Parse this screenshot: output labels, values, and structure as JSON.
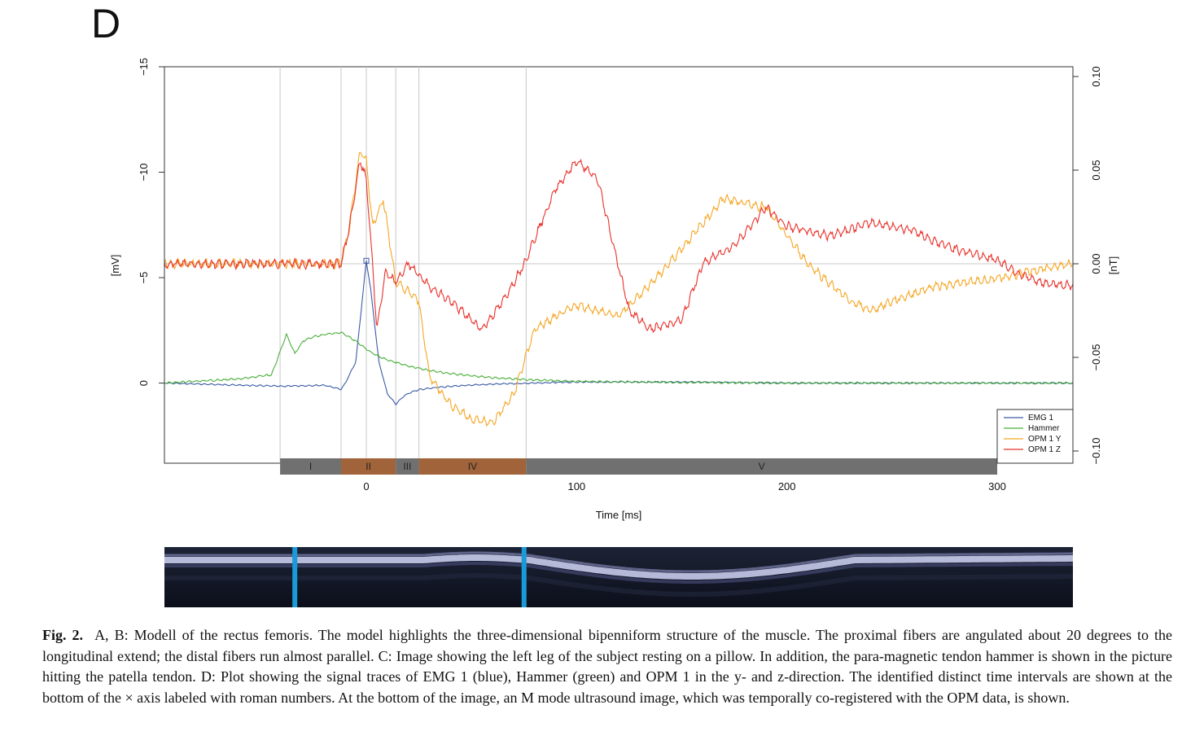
{
  "panel_label": "D",
  "caption": {
    "label": "Fig. 2.",
    "text": "A, B: Modell of the rectus femoris. The model highlights the three-dimensional bipenniform structure of the muscle. The proximal fibers are angulated about 20 degrees to the longitudinal extend; the distal fibers run almost parallel. C: Image showing the left leg of the subject resting on a pillow. In addition, the para-magnetic tendon hammer is shown in the picture hitting the patella tendon. D: Plot showing the signal traces of EMG 1 (blue), Hammer (green) and OPM 1 in the y- and z-direction. The identified distinct time intervals are shown at the bottom of the × axis labeled with roman numbers. At the bottom of the image, an M mode ultrasound image, which was temporally co-registered with the OPM data, is shown."
  },
  "chart_data": {
    "type": "line",
    "xlabel": "Time [ms]",
    "ylabel_left": "[mV]",
    "ylabel_right": "[nT]",
    "xlim": [
      -96,
      336
    ],
    "ylim_left": [
      -15,
      3.8
    ],
    "ylim_right": [
      -0.1,
      0.1
    ],
    "x_ticks": [
      0,
      100,
      200,
      300
    ],
    "y_ticks_left": [
      -15,
      -10,
      -5,
      0
    ],
    "y_ticks_right": [
      0.1,
      0.05,
      0.0,
      -0.05,
      -0.1
    ],
    "y_tick_labels_left": [
      "−15",
      "−10",
      "−5",
      "0"
    ],
    "y_tick_labels_right": [
      "0.10",
      "0.05",
      "0.00",
      "−0.05",
      "−0.10"
    ],
    "x_tick_labels": [
      "0",
      "100",
      "200",
      "300"
    ],
    "left_axis_inverted": true,
    "grid": "vertical lines at interval boundaries",
    "vlines": [
      -41,
      -12,
      0,
      14,
      25,
      76
    ],
    "hline_right": 0,
    "legend_position": "bottom-right",
    "legend": [
      "EMG 1",
      "Hammer",
      "OPM 1  Y",
      "OPM 1  Z"
    ],
    "intervals": [
      {
        "label": "I",
        "start": -41,
        "end": -12,
        "color": "#707070"
      },
      {
        "label": "II",
        "start": -12,
        "end": 14,
        "color": "#a0633a"
      },
      {
        "label": "III",
        "start": 14,
        "end": 25,
        "color": "#707070"
      },
      {
        "label": "IV",
        "start": 25,
        "end": 76,
        "color": "#a0633a"
      },
      {
        "label": "V",
        "start": 76,
        "end": 300,
        "color": "#707070"
      }
    ],
    "series": [
      {
        "name": "EMG 1",
        "axis": "left",
        "color": "#3b5ba5",
        "x": [
          -96,
          -60,
          -40,
          -20,
          -12,
          -10,
          -5,
          0,
          2,
          6,
          10,
          14,
          18,
          22,
          26,
          30,
          40,
          50,
          60,
          80,
          100,
          130,
          160,
          200,
          250,
          300,
          336
        ],
        "y": [
          0,
          0.1,
          0.15,
          0.1,
          0.3,
          0,
          -1.0,
          -5.8,
          -4.5,
          -1.0,
          0.5,
          1.0,
          0.6,
          0.4,
          0.3,
          0.25,
          0.15,
          0.1,
          0.05,
          0.0,
          -0.05,
          -0.05,
          -0.05,
          0,
          0,
          0,
          0
        ]
      },
      {
        "name": "Hammer",
        "axis": "left",
        "color": "#4caf3c",
        "x": [
          -96,
          -60,
          -45,
          -38,
          -34,
          -30,
          -25,
          -20,
          -12,
          -5,
          0,
          5,
          10,
          20,
          30,
          40,
          50,
          60,
          80,
          100,
          150,
          200,
          250,
          300,
          336
        ],
        "y": [
          0,
          -0.2,
          -0.4,
          -2.3,
          -1.4,
          -2.0,
          -2.2,
          -2.3,
          -2.4,
          -2.0,
          -1.6,
          -1.3,
          -1.1,
          -0.8,
          -0.6,
          -0.45,
          -0.35,
          -0.25,
          -0.15,
          -0.08,
          -0.03,
          0,
          0,
          0,
          0
        ]
      },
      {
        "name": "OPM 1  Y",
        "axis": "right",
        "color": "#f5a623",
        "x": [
          -96,
          -60,
          -30,
          -12,
          -8,
          -3,
          0,
          3,
          8,
          14,
          20,
          25,
          30,
          40,
          50,
          60,
          70,
          80,
          100,
          120,
          140,
          170,
          190,
          210,
          230,
          240,
          250,
          270,
          300,
          320,
          336
        ],
        "y": [
          0.0,
          0.0,
          0.0,
          0.0,
          0.02,
          0.06,
          0.055,
          0.02,
          0.035,
          -0.01,
          -0.015,
          -0.02,
          -0.06,
          -0.075,
          -0.083,
          -0.085,
          -0.07,
          -0.035,
          -0.022,
          -0.028,
          -0.005,
          0.035,
          0.03,
          0.0,
          -0.02,
          -0.025,
          -0.02,
          -0.012,
          -0.008,
          -0.003,
          0.0
        ]
      },
      {
        "name": "OPM 1  Z",
        "axis": "right",
        "color": "#e8302a",
        "x": [
          -96,
          -60,
          -30,
          -12,
          -8,
          -3,
          0,
          2,
          5,
          9,
          14,
          20,
          30,
          40,
          55,
          65,
          75,
          90,
          100,
          110,
          125,
          135,
          150,
          160,
          175,
          190,
          200,
          220,
          240,
          260,
          270,
          280,
          300,
          310,
          320,
          336
        ],
        "y": [
          0.0,
          0.0,
          0.0,
          0.0,
          0.02,
          0.055,
          0.045,
          0.015,
          -0.035,
          -0.005,
          -0.01,
          0.0,
          -0.012,
          -0.02,
          -0.035,
          -0.02,
          0.0,
          0.04,
          0.055,
          0.045,
          -0.025,
          -0.035,
          -0.03,
          0.0,
          0.01,
          0.03,
          0.02,
          0.015,
          0.022,
          0.018,
          0.012,
          0.008,
          0.002,
          -0.005,
          -0.01,
          -0.012
        ]
      }
    ]
  },
  "ultrasound": {
    "markers_ms": [
      -34,
      75
    ]
  }
}
